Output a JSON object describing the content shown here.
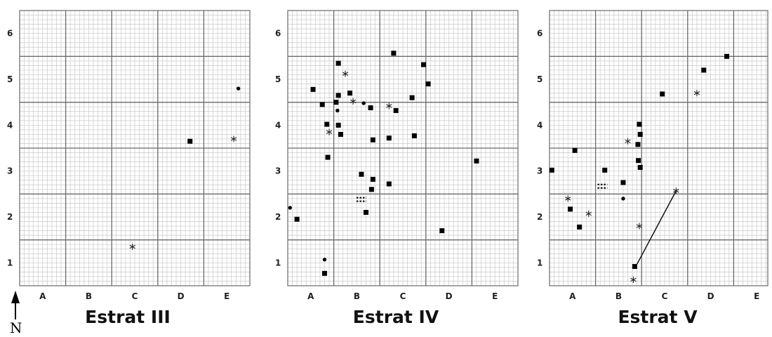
{
  "north_arrow": {
    "label": "N"
  },
  "panels": [
    {
      "title": "Estrat III",
      "x_ticks": [
        "A",
        "B",
        "C",
        "D",
        "E"
      ],
      "y_ticks": [
        "1",
        "2",
        "3",
        "4",
        "5",
        "6"
      ],
      "finds": [
        {
          "type": "square",
          "x": 3.7,
          "y": 3.65
        },
        {
          "type": "star",
          "x": 4.65,
          "y": 3.7
        },
        {
          "type": "dot",
          "x": 4.75,
          "y": 4.8
        },
        {
          "type": "star",
          "x": 2.45,
          "y": 1.35
        }
      ],
      "lines": []
    },
    {
      "title": "Estrat IV",
      "x_ticks": [
        "A",
        "B",
        "C",
        "D",
        "E"
      ],
      "y_ticks": [
        "1",
        "2",
        "3",
        "4",
        "5",
        "6"
      ],
      "finds": [
        {
          "type": "dot",
          "x": 0.05,
          "y": 2.2
        },
        {
          "type": "square",
          "x": 0.2,
          "y": 1.95
        },
        {
          "type": "square",
          "x": 0.55,
          "y": 4.78
        },
        {
          "type": "square",
          "x": 0.75,
          "y": 4.45
        },
        {
          "type": "square",
          "x": 0.85,
          "y": 4.02
        },
        {
          "type": "star",
          "x": 0.9,
          "y": 3.85
        },
        {
          "type": "square",
          "x": 0.87,
          "y": 3.3
        },
        {
          "type": "dot",
          "x": 0.8,
          "y": 1.07
        },
        {
          "type": "square",
          "x": 0.8,
          "y": 0.77
        },
        {
          "type": "square",
          "x": 1.05,
          "y": 4.5
        },
        {
          "type": "square",
          "x": 1.1,
          "y": 5.35
        },
        {
          "type": "square",
          "x": 1.1,
          "y": 4.65
        },
        {
          "type": "dot",
          "x": 1.08,
          "y": 4.32
        },
        {
          "type": "square",
          "x": 1.1,
          "y": 4.0
        },
        {
          "type": "square",
          "x": 1.15,
          "y": 3.8
        },
        {
          "type": "star",
          "x": 1.25,
          "y": 5.12
        },
        {
          "type": "square",
          "x": 1.35,
          "y": 4.7
        },
        {
          "type": "star",
          "x": 1.42,
          "y": 4.52
        },
        {
          "type": "dot",
          "x": 1.65,
          "y": 4.48
        },
        {
          "type": "square",
          "x": 1.8,
          "y": 4.38
        },
        {
          "type": "square",
          "x": 1.85,
          "y": 3.68
        },
        {
          "type": "square",
          "x": 1.6,
          "y": 2.93
        },
        {
          "type": "square",
          "x": 1.85,
          "y": 2.82
        },
        {
          "type": "square",
          "x": 1.82,
          "y": 2.6
        },
        {
          "type": "dash",
          "x": 1.6,
          "y": 2.38
        },
        {
          "type": "square",
          "x": 1.7,
          "y": 2.1
        },
        {
          "type": "square",
          "x": 2.3,
          "y": 5.57
        },
        {
          "type": "star",
          "x": 2.2,
          "y": 4.42
        },
        {
          "type": "square",
          "x": 2.35,
          "y": 4.32
        },
        {
          "type": "square",
          "x": 2.2,
          "y": 3.72
        },
        {
          "type": "square",
          "x": 2.2,
          "y": 2.72
        },
        {
          "type": "square",
          "x": 2.7,
          "y": 4.6
        },
        {
          "type": "square",
          "x": 2.75,
          "y": 3.77
        },
        {
          "type": "square",
          "x": 2.95,
          "y": 5.32
        },
        {
          "type": "square",
          "x": 3.05,
          "y": 4.9
        },
        {
          "type": "square",
          "x": 3.35,
          "y": 1.7
        },
        {
          "type": "square",
          "x": 4.1,
          "y": 3.22
        }
      ],
      "lines": []
    },
    {
      "title": "Estrat V",
      "x_ticks": [
        "A",
        "B",
        "C",
        "D",
        "E"
      ],
      "y_ticks": [
        "1",
        "2",
        "3",
        "4",
        "5",
        "6"
      ],
      "finds": [
        {
          "type": "square",
          "x": 0.05,
          "y": 3.02
        },
        {
          "type": "square",
          "x": 0.55,
          "y": 3.45
        },
        {
          "type": "star",
          "x": 0.4,
          "y": 2.4
        },
        {
          "type": "square",
          "x": 0.45,
          "y": 2.17
        },
        {
          "type": "square",
          "x": 0.65,
          "y": 1.78
        },
        {
          "type": "star",
          "x": 0.85,
          "y": 2.07
        },
        {
          "type": "square",
          "x": 1.2,
          "y": 3.02
        },
        {
          "type": "dash",
          "x": 1.15,
          "y": 2.67
        },
        {
          "type": "square",
          "x": 1.6,
          "y": 2.75
        },
        {
          "type": "dot",
          "x": 1.6,
          "y": 2.4
        },
        {
          "type": "square",
          "x": 1.85,
          "y": 0.92
        },
        {
          "type": "star",
          "x": 1.82,
          "y": 0.63
        },
        {
          "type": "star",
          "x": 1.7,
          "y": 3.65
        },
        {
          "type": "square",
          "x": 1.95,
          "y": 4.02
        },
        {
          "type": "square",
          "x": 1.97,
          "y": 3.8
        },
        {
          "type": "square",
          "x": 1.92,
          "y": 3.58
        },
        {
          "type": "square",
          "x": 1.93,
          "y": 3.23
        },
        {
          "type": "square",
          "x": 1.97,
          "y": 3.08
        },
        {
          "type": "star",
          "x": 1.95,
          "y": 1.8
        },
        {
          "type": "star",
          "x": 2.75,
          "y": 2.57
        },
        {
          "type": "square",
          "x": 2.45,
          "y": 4.68
        },
        {
          "type": "star",
          "x": 3.2,
          "y": 4.7
        },
        {
          "type": "square",
          "x": 3.35,
          "y": 5.2
        },
        {
          "type": "square",
          "x": 3.85,
          "y": 5.5
        }
      ],
      "lines": [
        {
          "from": [
            1.9,
            0.97
          ],
          "to": [
            2.75,
            2.57
          ]
        }
      ]
    }
  ]
}
